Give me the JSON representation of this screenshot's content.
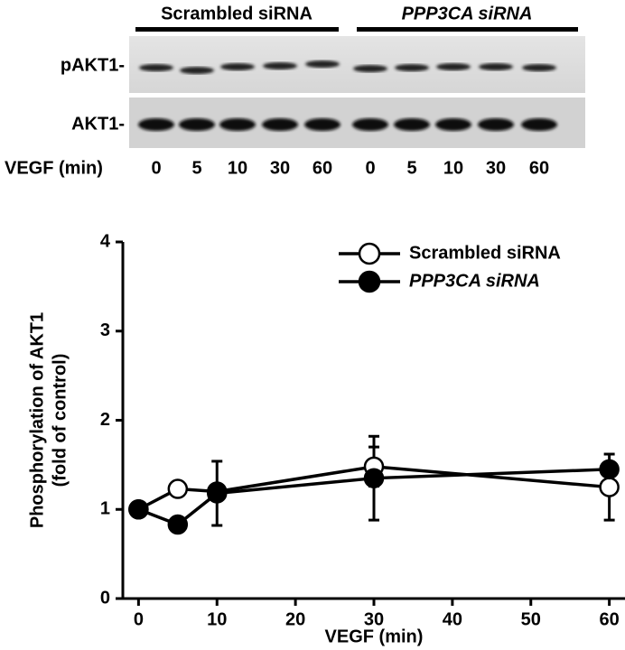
{
  "blot": {
    "groups": [
      "Scrambled siRNA",
      "PPP3CA siRNA"
    ],
    "rows": [
      "pAKT1-",
      "AKT1-"
    ],
    "lane_title": "VEGF (min)",
    "lanes": [
      0,
      5,
      10,
      30,
      60,
      0,
      5,
      10,
      30,
      60
    ]
  },
  "chart_data": {
    "type": "line",
    "y_label": [
      "Phosphorylation of AKT1",
      "(fold of control)"
    ],
    "x_label": "VEGF (min)",
    "x": [
      0,
      5,
      10,
      30,
      60
    ],
    "series": [
      {
        "name": "Scrambled siRNA",
        "color": "#ffffff",
        "values": [
          1.0,
          1.23,
          1.2,
          1.48,
          1.25
        ],
        "errors": [
          0,
          0.05,
          0.08,
          0.22,
          0.37
        ]
      },
      {
        "name": "PPP3CA siRNA",
        "color": "#000000",
        "values": [
          1.0,
          0.83,
          1.18,
          1.35,
          1.45
        ],
        "errors": [
          0,
          0.05,
          0.36,
          0.47,
          0.06
        ]
      }
    ],
    "xlim": [
      -2,
      62
    ],
    "ylim": [
      0,
      4
    ],
    "xticks": [
      0,
      10,
      20,
      30,
      40,
      50,
      60
    ],
    "yticks": [
      0,
      1,
      2,
      3,
      4
    ],
    "legend": "upper right"
  }
}
